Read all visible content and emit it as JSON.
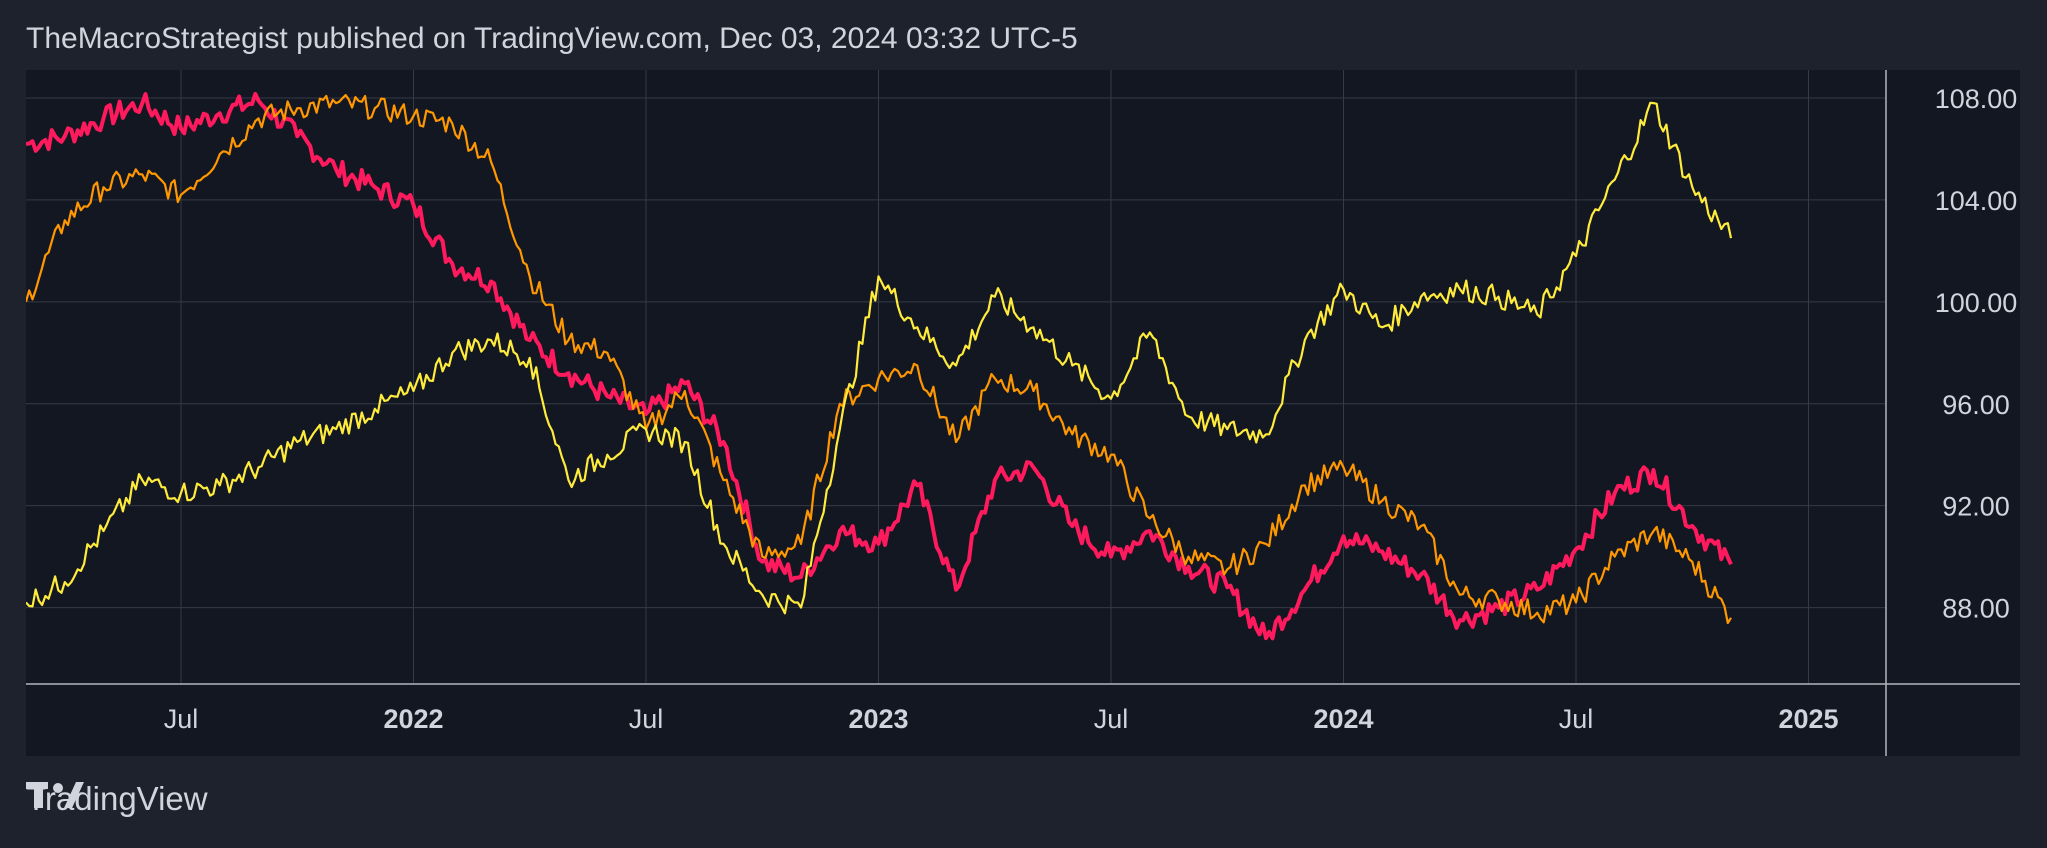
{
  "header": {
    "title": "TheMacroStrategist published on TradingView.com, Dec 03, 2024 03:32 UTC-5"
  },
  "footer": {
    "brand": "TradingView",
    "logo_icon": "tradingview-logo-icon"
  },
  "chart_data": {
    "type": "line",
    "title": "",
    "xlabel": "",
    "ylabel": "",
    "x_ticks": [
      {
        "label": "Jul",
        "x": "2021-07",
        "bold": false
      },
      {
        "label": "2022",
        "x": "2022-01",
        "bold": true
      },
      {
        "label": "Jul",
        "x": "2022-07",
        "bold": false
      },
      {
        "label": "2023",
        "x": "2023-01",
        "bold": true
      },
      {
        "label": "Jul",
        "x": "2023-07",
        "bold": false
      },
      {
        "label": "2024",
        "x": "2024-01",
        "bold": true
      },
      {
        "label": "Jul",
        "x": "2024-07",
        "bold": false
      },
      {
        "label": "2025",
        "x": "2025-01",
        "bold": true
      }
    ],
    "y_ticks": [
      "108.00",
      "104.00",
      "100.00",
      "96.00",
      "92.00",
      "88.00"
    ],
    "ylim": [
      85,
      109.1
    ],
    "xlim": [
      "2021-03",
      "2025-03"
    ],
    "grid": true,
    "series": [
      {
        "color": "#ff1a5e",
        "x": [
          "2021-03",
          "2021-04",
          "2021-05",
          "2021-06",
          "2021-07",
          "2021-08",
          "2021-09",
          "2021-10",
          "2021-11",
          "2021-12",
          "2022-01",
          "2022-02",
          "2022-03",
          "2022-04",
          "2022-05",
          "2022-06",
          "2022-07",
          "2022-08",
          "2022-09",
          "2022-10",
          "2022-11",
          "2022-12",
          "2023-01",
          "2023-02",
          "2023-03",
          "2023-04",
          "2023-05",
          "2023-06",
          "2023-07",
          "2023-08",
          "2023-09",
          "2023-10",
          "2023-11",
          "2023-12",
          "2024-01",
          "2024-02",
          "2024-03",
          "2024-04",
          "2024-05",
          "2024-06",
          "2024-07",
          "2024-08",
          "2024-09",
          "2024-10",
          "2024-11"
        ],
        "values": [
          106.2,
          106.5,
          107.2,
          107.8,
          106.8,
          107.4,
          107.9,
          106.5,
          105.2,
          104.5,
          103.8,
          101.5,
          100.8,
          98.5,
          97.2,
          96.3,
          95.6,
          96.8,
          94.5,
          89.8,
          89.2,
          91.0,
          90.5,
          92.8,
          88.7,
          93.0,
          93.5,
          91.2,
          90.0,
          91.0,
          89.6,
          88.8,
          86.8,
          88.7,
          90.8,
          90.2,
          89.3,
          87.5,
          88.0,
          88.7,
          90.3,
          92.5,
          93.4,
          91.2,
          89.7
        ]
      },
      {
        "color": "#ff9800",
        "x": [
          "2021-03",
          "2021-04",
          "2021-05",
          "2021-06",
          "2021-07",
          "2021-08",
          "2021-09",
          "2021-10",
          "2021-11",
          "2021-12",
          "2022-01",
          "2022-02",
          "2022-03",
          "2022-04",
          "2022-05",
          "2022-06",
          "2022-07",
          "2022-08",
          "2022-09",
          "2022-10",
          "2022-11",
          "2022-12",
          "2023-01",
          "2023-02",
          "2023-03",
          "2023-04",
          "2023-05",
          "2023-06",
          "2023-07",
          "2023-08",
          "2023-09",
          "2023-10",
          "2023-11",
          "2023-12",
          "2024-01",
          "2024-02",
          "2024-03",
          "2024-04",
          "2024-05",
          "2024-06",
          "2024-07",
          "2024-08",
          "2024-09",
          "2024-10",
          "2024-11"
        ],
        "values": [
          100.0,
          103.2,
          104.5,
          105.0,
          104.2,
          105.8,
          107.2,
          107.6,
          107.8,
          107.6,
          107.3,
          107.0,
          105.5,
          101.0,
          98.5,
          98.0,
          95.0,
          96.5,
          93.0,
          90.0,
          90.5,
          96.0,
          97.0,
          97.5,
          94.5,
          97.0,
          96.5,
          94.8,
          94.0,
          91.5,
          90.0,
          89.5,
          90.5,
          92.8,
          93.5,
          92.2,
          91.2,
          88.5,
          88.3,
          87.8,
          88.2,
          90.0,
          91.0,
          89.8,
          87.6
        ]
      },
      {
        "color": "#ffeb3b",
        "x": [
          "2021-03",
          "2021-04",
          "2021-05",
          "2021-06",
          "2021-07",
          "2021-08",
          "2021-09",
          "2021-10",
          "2021-11",
          "2021-12",
          "2022-01",
          "2022-02",
          "2022-03",
          "2022-04",
          "2022-05",
          "2022-06",
          "2022-07",
          "2022-08",
          "2022-09",
          "2022-10",
          "2022-11",
          "2022-12",
          "2023-01",
          "2023-02",
          "2023-03",
          "2023-04",
          "2023-05",
          "2023-06",
          "2023-07",
          "2023-08",
          "2023-09",
          "2023-10",
          "2023-11",
          "2023-12",
          "2024-01",
          "2024-02",
          "2024-03",
          "2024-04",
          "2024-05",
          "2024-06",
          "2024-07",
          "2024-08",
          "2024-09",
          "2024-10",
          "2024-11"
        ],
        "values": [
          88.2,
          89.0,
          91.0,
          93.0,
          92.5,
          92.8,
          93.5,
          94.5,
          95.0,
          95.8,
          96.5,
          98.0,
          98.5,
          97.8,
          93.0,
          94.0,
          95.0,
          94.5,
          90.5,
          88.5,
          88.0,
          95.0,
          101.0,
          99.0,
          97.5,
          100.2,
          99.0,
          97.5,
          96.2,
          98.8,
          95.5,
          95.0,
          94.8,
          98.5,
          100.5,
          99.0,
          100.2,
          100.5,
          100.2,
          99.5,
          101.8,
          104.8,
          107.8,
          104.5,
          102.5
        ]
      }
    ]
  }
}
